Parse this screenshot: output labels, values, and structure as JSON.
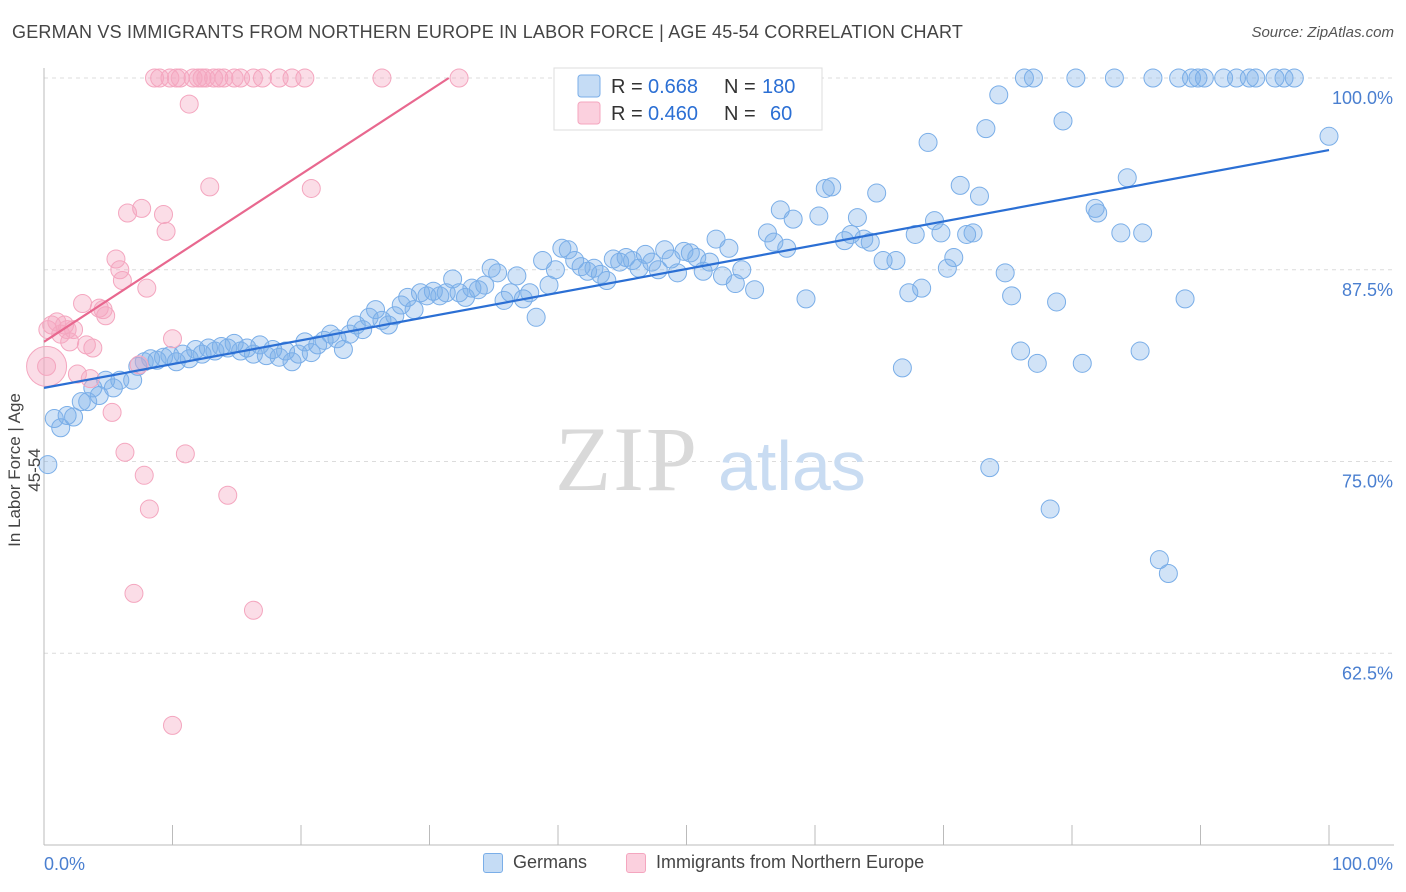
{
  "header": {
    "title": "GERMAN VS IMMIGRANTS FROM NORTHERN EUROPE IN LABOR FORCE | AGE 45-54 CORRELATION CHART",
    "source": "Source: ZipAtlas.com"
  },
  "watermark": {
    "zip": "ZIP",
    "atlas": "atlas"
  },
  "chart_data": {
    "type": "scatter",
    "ylabel": "In Labor Force | Age 45-54",
    "xlabel": "",
    "xlim": [
      0,
      100
    ],
    "ylim": [
      50,
      101.5
    ],
    "x_tick_labels": [
      "0.0%",
      "100.0%"
    ],
    "y_ticks": [
      62.5,
      75.0,
      87.5,
      100.0
    ],
    "y_tick_labels": [
      "62.5%",
      "75.0%",
      "87.5%",
      "100.0%"
    ],
    "grid": true,
    "legend_position": "top-center",
    "series": [
      {
        "name": "Germans",
        "color": "#7aaee8",
        "line_color": "#2b6fd4",
        "r": "0.668",
        "n": "180",
        "trend": [
          [
            0,
            79.8
          ],
          [
            100,
            95.3
          ]
        ],
        "points": [
          [
            0.3,
            74.8
          ],
          [
            0.8,
            77.8
          ],
          [
            1.3,
            77.2
          ],
          [
            1.8,
            78.0
          ],
          [
            2.3,
            77.9
          ],
          [
            2.9,
            78.9
          ],
          [
            3.4,
            78.9
          ],
          [
            3.8,
            79.8
          ],
          [
            4.3,
            79.3
          ],
          [
            4.8,
            80.3
          ],
          [
            5.4,
            79.8
          ],
          [
            5.9,
            80.3
          ],
          [
            6.9,
            80.3
          ],
          [
            7.3,
            81.2
          ],
          [
            7.8,
            81.5
          ],
          [
            8.3,
            81.7
          ],
          [
            8.8,
            81.6
          ],
          [
            9.3,
            81.8
          ],
          [
            9.8,
            81.9
          ],
          [
            10.3,
            81.5
          ],
          [
            10.8,
            82.0
          ],
          [
            11.3,
            81.7
          ],
          [
            11.8,
            82.3
          ],
          [
            12.3,
            82.0
          ],
          [
            12.8,
            82.4
          ],
          [
            13.3,
            82.2
          ],
          [
            13.8,
            82.5
          ],
          [
            14.3,
            82.4
          ],
          [
            14.8,
            82.7
          ],
          [
            15.3,
            82.2
          ],
          [
            15.8,
            82.4
          ],
          [
            16.3,
            82.0
          ],
          [
            16.8,
            82.6
          ],
          [
            17.3,
            81.9
          ],
          [
            17.8,
            82.3
          ],
          [
            18.3,
            81.8
          ],
          [
            18.8,
            82.2
          ],
          [
            19.3,
            81.5
          ],
          [
            19.8,
            82.0
          ],
          [
            20.3,
            82.8
          ],
          [
            20.8,
            82.1
          ],
          [
            21.3,
            82.6
          ],
          [
            21.8,
            82.9
          ],
          [
            22.3,
            83.3
          ],
          [
            22.8,
            83.0
          ],
          [
            23.3,
            82.3
          ],
          [
            23.8,
            83.3
          ],
          [
            24.3,
            83.9
          ],
          [
            24.8,
            83.6
          ],
          [
            25.3,
            84.4
          ],
          [
            25.8,
            84.9
          ],
          [
            26.3,
            84.2
          ],
          [
            26.8,
            83.9
          ],
          [
            27.3,
            84.5
          ],
          [
            27.8,
            85.2
          ],
          [
            28.3,
            85.7
          ],
          [
            28.8,
            84.9
          ],
          [
            29.3,
            86.0
          ],
          [
            29.8,
            85.8
          ],
          [
            30.3,
            86.1
          ],
          [
            30.8,
            85.8
          ],
          [
            31.3,
            86.0
          ],
          [
            31.8,
            86.9
          ],
          [
            32.3,
            86.0
          ],
          [
            32.8,
            85.7
          ],
          [
            33.3,
            86.3
          ],
          [
            33.8,
            86.2
          ],
          [
            34.3,
            86.5
          ],
          [
            34.8,
            87.6
          ],
          [
            35.3,
            87.3
          ],
          [
            35.8,
            85.5
          ],
          [
            36.3,
            86.0
          ],
          [
            36.8,
            87.1
          ],
          [
            37.3,
            85.6
          ],
          [
            37.8,
            86.0
          ],
          [
            38.3,
            84.4
          ],
          [
            38.8,
            88.1
          ],
          [
            39.3,
            86.5
          ],
          [
            39.8,
            87.5
          ],
          [
            40.3,
            88.9
          ],
          [
            40.8,
            88.8
          ],
          [
            41.3,
            88.1
          ],
          [
            41.8,
            87.7
          ],
          [
            42.3,
            87.4
          ],
          [
            42.8,
            87.6
          ],
          [
            43.3,
            87.2
          ],
          [
            43.8,
            86.8
          ],
          [
            44.3,
            88.2
          ],
          [
            44.8,
            88.0
          ],
          [
            45.3,
            88.3
          ],
          [
            45.8,
            88.1
          ],
          [
            46.3,
            87.6
          ],
          [
            46.8,
            88.5
          ],
          [
            47.3,
            88.0
          ],
          [
            47.8,
            87.5
          ],
          [
            48.3,
            88.8
          ],
          [
            48.8,
            88.2
          ],
          [
            49.3,
            87.3
          ],
          [
            49.8,
            88.7
          ],
          [
            50.3,
            88.6
          ],
          [
            50.8,
            88.3
          ],
          [
            51.3,
            87.4
          ],
          [
            51.8,
            88.0
          ],
          [
            52.3,
            89.5
          ],
          [
            52.8,
            87.1
          ],
          [
            53.3,
            88.9
          ],
          [
            53.8,
            86.6
          ],
          [
            54.3,
            87.5
          ],
          [
            55.3,
            86.2
          ],
          [
            56.3,
            89.9
          ],
          [
            56.8,
            89.3
          ],
          [
            57.3,
            91.4
          ],
          [
            57.8,
            88.9
          ],
          [
            58.3,
            90.8
          ],
          [
            59.3,
            85.6
          ],
          [
            60.3,
            91.0
          ],
          [
            60.8,
            92.8
          ],
          [
            61.3,
            92.9
          ],
          [
            62.3,
            89.4
          ],
          [
            62.8,
            89.8
          ],
          [
            63.3,
            90.9
          ],
          [
            63.8,
            89.5
          ],
          [
            64.3,
            89.3
          ],
          [
            64.8,
            92.5
          ],
          [
            65.3,
            88.1
          ],
          [
            66.3,
            88.1
          ],
          [
            66.8,
            81.1
          ],
          [
            67.3,
            86.0
          ],
          [
            67.8,
            89.8
          ],
          [
            68.3,
            86.3
          ],
          [
            68.8,
            95.8
          ],
          [
            69.3,
            90.7
          ],
          [
            69.8,
            89.9
          ],
          [
            70.3,
            87.6
          ],
          [
            70.8,
            88.3
          ],
          [
            71.3,
            93.0
          ],
          [
            71.8,
            89.8
          ],
          [
            72.3,
            89.9
          ],
          [
            72.8,
            92.3
          ],
          [
            73.3,
            96.7
          ],
          [
            73.6,
            74.6
          ],
          [
            74.3,
            98.9
          ],
          [
            74.8,
            87.3
          ],
          [
            75.3,
            85.8
          ],
          [
            76.0,
            82.2
          ],
          [
            76.3,
            100.0
          ],
          [
            77.0,
            100.0
          ],
          [
            77.3,
            81.4
          ],
          [
            78.3,
            71.9
          ],
          [
            78.8,
            85.4
          ],
          [
            79.3,
            97.2
          ],
          [
            80.3,
            100.0
          ],
          [
            80.8,
            81.4
          ],
          [
            81.8,
            91.5
          ],
          [
            82.0,
            91.2
          ],
          [
            83.3,
            100.0
          ],
          [
            83.8,
            89.9
          ],
          [
            84.3,
            93.5
          ],
          [
            85.3,
            82.2
          ],
          [
            85.5,
            89.9
          ],
          [
            86.3,
            100.0
          ],
          [
            86.8,
            68.6
          ],
          [
            87.5,
            67.7
          ],
          [
            88.3,
            100.0
          ],
          [
            88.8,
            85.6
          ],
          [
            89.3,
            100.0
          ],
          [
            89.8,
            100.0
          ],
          [
            90.3,
            100.0
          ],
          [
            91.8,
            100.0
          ],
          [
            92.8,
            100.0
          ],
          [
            93.8,
            100.0
          ],
          [
            94.3,
            100.0
          ],
          [
            95.8,
            100.0
          ],
          [
            96.5,
            100.0
          ],
          [
            97.3,
            100.0
          ],
          [
            100.0,
            96.2
          ]
        ]
      },
      {
        "name": "Immigrants from Northern Europe",
        "color": "#f4a6bf",
        "line_color": "#e8688f",
        "r": "0.460",
        "n": "60",
        "trend": [
          [
            0,
            82.8
          ],
          [
            31.5,
            100.0
          ]
        ],
        "points": [
          [
            0.2,
            81.2
          ],
          [
            0.3,
            83.6
          ],
          [
            0.6,
            83.9
          ],
          [
            1.0,
            84.1
          ],
          [
            1.3,
            83.3
          ],
          [
            1.6,
            83.9
          ],
          [
            1.8,
            83.6
          ],
          [
            2.0,
            82.8
          ],
          [
            2.3,
            83.6
          ],
          [
            2.6,
            80.7
          ],
          [
            3.0,
            85.3
          ],
          [
            3.3,
            82.6
          ],
          [
            3.6,
            80.4
          ],
          [
            3.8,
            82.4
          ],
          [
            4.3,
            85.0
          ],
          [
            4.6,
            84.9
          ],
          [
            4.8,
            84.5
          ],
          [
            5.3,
            78.2
          ],
          [
            5.6,
            88.2
          ],
          [
            5.9,
            87.5
          ],
          [
            6.1,
            86.8
          ],
          [
            6.3,
            75.6
          ],
          [
            6.5,
            91.2
          ],
          [
            7.0,
            66.4
          ],
          [
            7.4,
            81.3
          ],
          [
            7.6,
            91.5
          ],
          [
            7.8,
            74.1
          ],
          [
            8.0,
            86.3
          ],
          [
            8.2,
            71.9
          ],
          [
            8.6,
            100.0
          ],
          [
            9.0,
            100.0
          ],
          [
            9.3,
            91.1
          ],
          [
            9.5,
            90.0
          ],
          [
            9.8,
            100.0
          ],
          [
            10.0,
            83.0
          ],
          [
            10.0,
            57.8
          ],
          [
            10.3,
            100.0
          ],
          [
            10.6,
            100.0
          ],
          [
            11.0,
            75.5
          ],
          [
            11.3,
            98.3
          ],
          [
            11.6,
            100.0
          ],
          [
            12.0,
            100.0
          ],
          [
            12.3,
            100.0
          ],
          [
            12.6,
            100.0
          ],
          [
            12.9,
            92.9
          ],
          [
            13.2,
            100.0
          ],
          [
            13.6,
            100.0
          ],
          [
            14.0,
            100.0
          ],
          [
            14.3,
            72.8
          ],
          [
            14.8,
            100.0
          ],
          [
            15.3,
            100.0
          ],
          [
            16.3,
            100.0
          ],
          [
            16.3,
            65.3
          ],
          [
            17.0,
            100.0
          ],
          [
            18.3,
            100.0
          ],
          [
            19.3,
            100.0
          ],
          [
            20.3,
            100.0
          ],
          [
            20.8,
            92.8
          ],
          [
            26.3,
            100.0
          ],
          [
            32.3,
            100.0
          ]
        ]
      }
    ]
  }
}
